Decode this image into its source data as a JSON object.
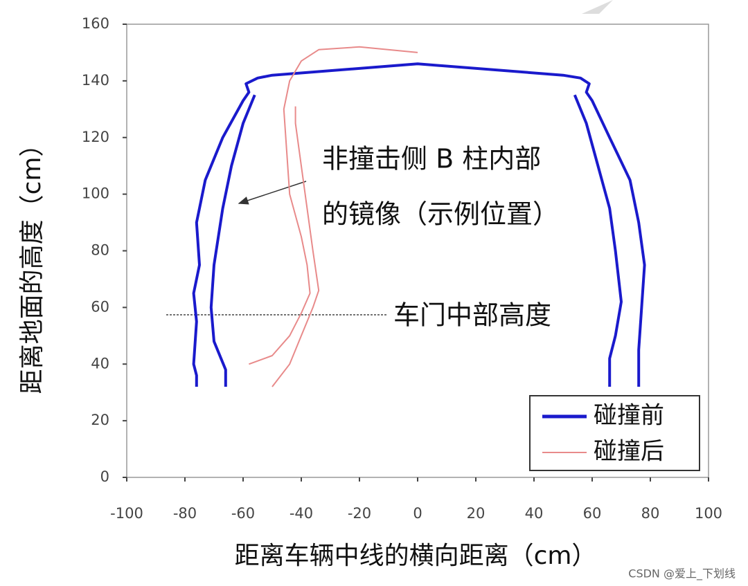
{
  "chart_data": {
    "type": "line",
    "xlabel": "距离车辆中线的横向距离（cm）",
    "ylabel": "距离地面的高度（cm）",
    "annotations": [
      "非撞击侧 B 柱内部",
      "的镜像（示例位置）",
      "车门中部高度"
    ],
    "watermark": "CSDN @爱上_下划线",
    "xlim": [
      -100,
      100
    ],
    "xticks": [
      -100,
      -80,
      -60,
      -40,
      -20,
      0,
      20,
      40,
      60,
      80,
      100
    ],
    "ylim": [
      0,
      160
    ],
    "yticks": [
      0,
      20,
      40,
      60,
      80,
      100,
      120,
      140,
      160
    ],
    "legend": "lower right",
    "series": [
      {
        "name": "碰撞前",
        "color": "#1a1acc",
        "x": [
          -76,
          -76,
          -77,
          -76,
          -77,
          -75,
          -76,
          -73,
          -67,
          -60,
          -58,
          -59,
          -55,
          -50,
          0,
          50,
          56,
          59,
          58,
          60,
          66,
          73,
          76,
          78,
          77,
          76,
          76,
          null,
          -66,
          -66,
          -70,
          -71,
          -70,
          -67,
          -64,
          -60,
          -56,
          null,
          54,
          58,
          62,
          66,
          68,
          70,
          68,
          66,
          66
        ],
        "values": [
          32,
          36,
          40,
          55,
          65,
          75,
          90,
          105,
          120,
          133,
          136,
          139,
          141,
          142,
          146,
          142,
          141,
          139,
          136,
          133,
          120,
          105,
          90,
          75,
          60,
          45,
          32,
          null,
          32,
          38,
          48,
          60,
          75,
          95,
          110,
          125,
          135,
          null,
          135,
          125,
          110,
          95,
          80,
          62,
          50,
          42,
          32
        ]
      },
      {
        "name": "碰撞后",
        "color": "#e88a8a",
        "x": [
          -58,
          -50,
          -44,
          -40,
          -37,
          -38,
          -40,
          -44,
          -45,
          -46,
          -44,
          -40,
          -34,
          -20,
          0,
          null,
          -50,
          -44,
          -40,
          -36,
          -34,
          -36,
          -38,
          -40,
          -42,
          -42
        ],
        "values": [
          40,
          43,
          50,
          58,
          65,
          75,
          85,
          100,
          115,
          130,
          140,
          147,
          151,
          152,
          150,
          null,
          32,
          40,
          50,
          60,
          66,
          80,
          95,
          110,
          125,
          131
        ]
      }
    ]
  }
}
